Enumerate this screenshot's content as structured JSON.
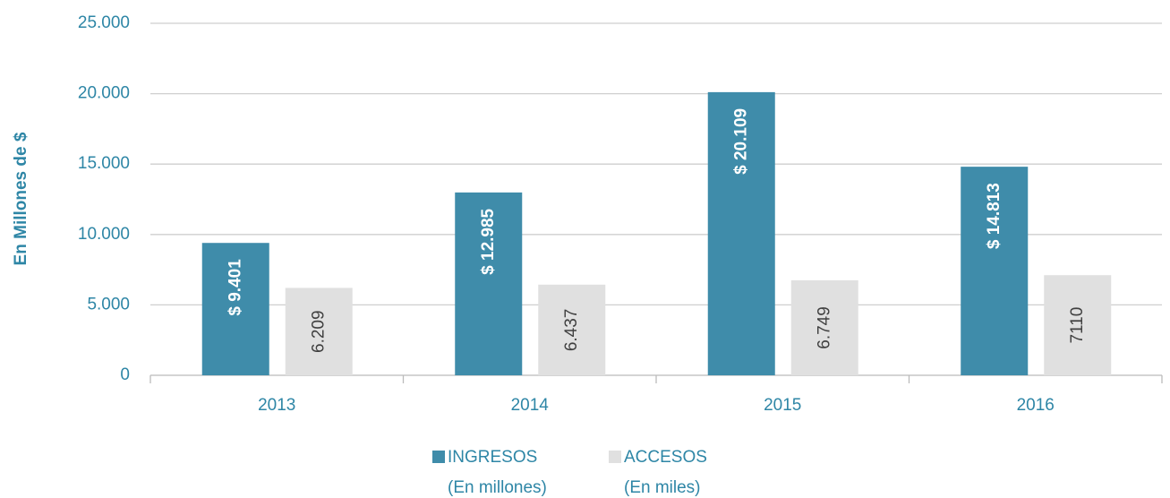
{
  "chart_data": {
    "type": "bar",
    "y_label": "En Millones de $",
    "categories": [
      "2013",
      "2014",
      "2015",
      "2016"
    ],
    "series": [
      {
        "name": "INGRESOS",
        "unit": "(En millones)",
        "color": "#3f8caa",
        "values": [
          9401,
          12985,
          20109,
          14813
        ],
        "value_labels": [
          "$ 9.401",
          "$ 12.985",
          "$ 20.109",
          "$ 14.813"
        ]
      },
      {
        "name": "ACCESOS",
        "unit": "(En miles)",
        "color": "#e0e0e0",
        "values": [
          6209,
          6437,
          6749,
          7110
        ],
        "value_labels": [
          "6.209",
          "6.437",
          "6.749",
          "7110"
        ]
      }
    ],
    "ylim": [
      0,
      25000
    ],
    "yticks": [
      0,
      {
        "value": 5000,
        "label": "5.000"
      },
      {
        "value": 10000,
        "label": "10.000"
      },
      {
        "value": 15000,
        "label": "15.000"
      },
      {
        "value": 20000,
        "label": "20.000"
      },
      {
        "value": 25000,
        "label": "25.000"
      }
    ],
    "grid": true,
    "legend": "bottom"
  }
}
